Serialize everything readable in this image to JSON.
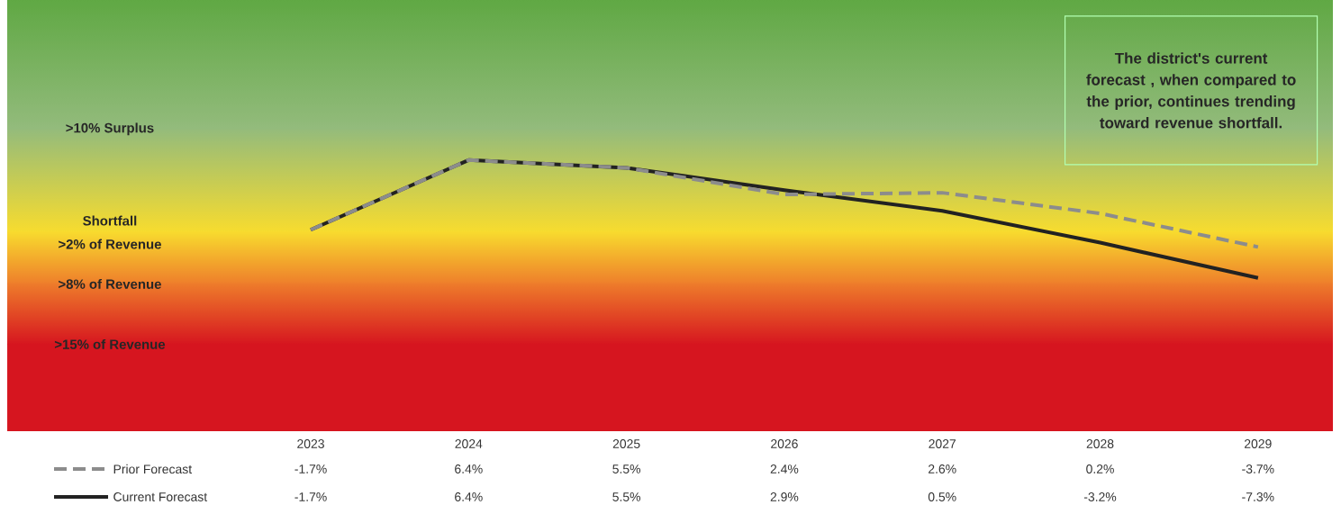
{
  "chart_data": {
    "type": "line",
    "categories": [
      "2023",
      "2024",
      "2025",
      "2026",
      "2027",
      "2028",
      "2029"
    ],
    "series": [
      {
        "name": "Current Forecast",
        "color": "#222222",
        "line_style": "solid",
        "values": [
          -1.7,
          6.4,
          5.5,
          2.9,
          0.5,
          -3.2,
          -7.3
        ],
        "value_labels": [
          "-1.7%",
          "6.4%",
          "5.5%",
          "2.9%",
          "0.5%",
          "-3.2%",
          "-7.3%"
        ]
      },
      {
        "name": "Prior Forecast",
        "color": "#8c8c8c",
        "line_style": "dashed",
        "values": [
          -1.7,
          6.4,
          5.5,
          2.4,
          2.6,
          0.2,
          -3.7
        ],
        "value_labels": [
          "-1.7%",
          "6.4%",
          "5.5%",
          "2.4%",
          "2.6%",
          "0.2%",
          "-3.7%"
        ]
      }
    ],
    "bands": [
      {
        "axis": "y",
        "from": 10,
        "to": 25,
        "color": "#5fa843"
      },
      {
        "axis": "y",
        "from": -2,
        "to": 10,
        "color": "#93bb7c"
      },
      {
        "axis": "y",
        "from": -8,
        "to": -2,
        "color": "#f8dc2e"
      },
      {
        "axis": "y",
        "from": -15,
        "to": -8,
        "color": "#ee7d2b"
      },
      {
        "axis": "y",
        "from": -25,
        "to": -15,
        "color": "#d6151f"
      }
    ],
    "annotations": [
      {
        "text": ">10% Surplus",
        "y": 10
      },
      {
        "text": "Shortfall",
        "y": -2
      },
      {
        "text": ">2% of Revenue",
        "y": -2
      },
      {
        "text": ">8% of Revenue",
        "y": -8
      },
      {
        "text": ">15% of Revenue",
        "y": -15
      },
      "The district's current forecast , when compared to the prior, continues trending toward revenue shortfall."
    ],
    "legend": "bottom",
    "marker": "none"
  }
}
